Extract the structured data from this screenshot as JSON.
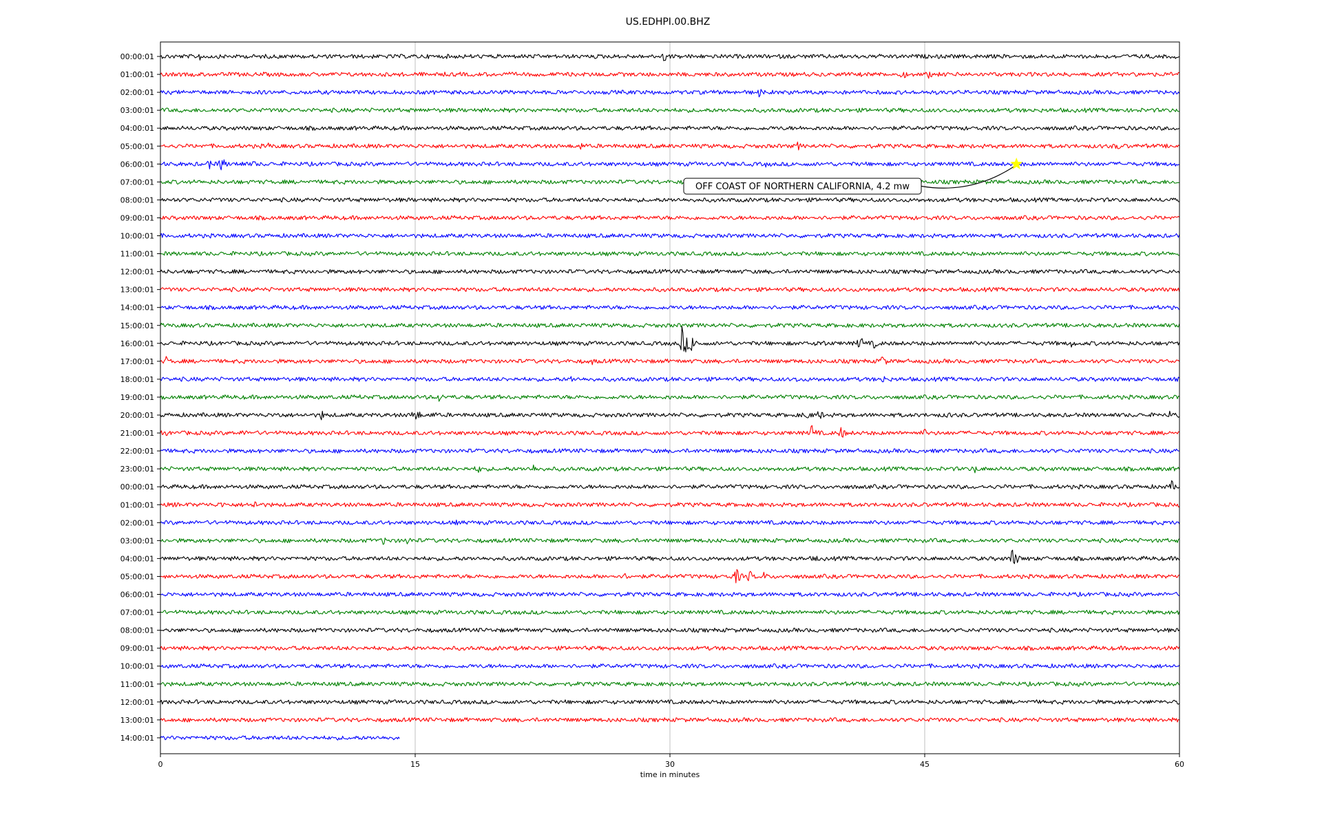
{
  "chart_data": {
    "type": "line",
    "title": "US.EDHPI.00.BHZ",
    "xlabel": "time in minutes",
    "ylabel": "",
    "xlim": [
      0,
      60
    ],
    "xticks": [
      0,
      15,
      30,
      45,
      60
    ],
    "grid": "vertical",
    "series_colors": [
      "#000000",
      "#ff0000",
      "#0000ff",
      "#008000"
    ],
    "rows": [
      {
        "label": "00:00:01",
        "color": "#000000",
        "end": 60,
        "events": [
          [
            2.2,
            0.6
          ],
          [
            2.4,
            0.5
          ],
          [
            29.6,
            0.7
          ]
        ]
      },
      {
        "label": "01:00:01",
        "color": "#ff0000",
        "end": 60,
        "events": [
          [
            43.6,
            0.7
          ],
          [
            45.2,
            0.5
          ]
        ]
      },
      {
        "label": "02:00:01",
        "color": "#0000ff",
        "end": 60,
        "events": [
          [
            35.2,
            0.6
          ]
        ]
      },
      {
        "label": "03:00:01",
        "color": "#008000",
        "end": 60,
        "events": []
      },
      {
        "label": "04:00:01",
        "color": "#000000",
        "end": 60,
        "events": []
      },
      {
        "label": "05:00:01",
        "color": "#ff0000",
        "end": 60,
        "events": [
          [
            6.3,
            0.5
          ],
          [
            24.7,
            0.5
          ],
          [
            37.5,
            0.5
          ],
          [
            56.2,
            0.6
          ]
        ]
      },
      {
        "label": "06:00:01",
        "color": "#0000ff",
        "end": 60,
        "events": [
          [
            2.8,
            0.7
          ],
          [
            3.5,
            1.0
          ],
          [
            4.6,
            0.6
          ],
          [
            5.4,
            0.5
          ],
          [
            35.6,
            0.4
          ]
        ]
      },
      {
        "label": "07:00:01",
        "color": "#008000",
        "end": 60,
        "events": []
      },
      {
        "label": "08:00:01",
        "color": "#000000",
        "end": 60,
        "events": []
      },
      {
        "label": "09:00:01",
        "color": "#ff0000",
        "end": 60,
        "events": []
      },
      {
        "label": "10:00:01",
        "color": "#0000ff",
        "end": 60,
        "events": []
      },
      {
        "label": "11:00:01",
        "color": "#008000",
        "end": 60,
        "events": []
      },
      {
        "label": "12:00:01",
        "color": "#000000",
        "end": 60,
        "events": []
      },
      {
        "label": "13:00:01",
        "color": "#ff0000",
        "end": 60,
        "events": []
      },
      {
        "label": "14:00:01",
        "color": "#0000ff",
        "end": 60,
        "events": []
      },
      {
        "label": "15:00:01",
        "color": "#008000",
        "end": 60,
        "events": []
      },
      {
        "label": "16:00:01",
        "color": "#000000",
        "end": 60,
        "events": [
          [
            30.7,
            1.8
          ],
          [
            31.2,
            1.2
          ],
          [
            38.8,
            0.7
          ],
          [
            41.1,
            1.0
          ],
          [
            42.0,
            0.6
          ],
          [
            53.6,
            0.5
          ]
        ]
      },
      {
        "label": "17:00:01",
        "color": "#ff0000",
        "end": 60,
        "events": [
          [
            0.3,
            0.6
          ],
          [
            25.4,
            0.4
          ],
          [
            42.4,
            0.9
          ]
        ]
      },
      {
        "label": "18:00:01",
        "color": "#0000ff",
        "end": 60,
        "events": [
          [
            18.6,
            0.3
          ],
          [
            24.1,
            0.5
          ],
          [
            37.4,
            0.4
          ],
          [
            42.5,
            0.5
          ]
        ]
      },
      {
        "label": "19:00:01",
        "color": "#008000",
        "end": 60,
        "events": [
          [
            11.7,
            0.3
          ],
          [
            16.3,
            0.7
          ],
          [
            30.0,
            0.4
          ]
        ]
      },
      {
        "label": "20:00:01",
        "color": "#000000",
        "end": 60,
        "events": [
          [
            6.9,
            0.5
          ],
          [
            9.4,
            0.7
          ],
          [
            14.9,
            1.0
          ],
          [
            16.0,
            0.5
          ],
          [
            37.9,
            0.8
          ],
          [
            38.7,
            0.7
          ],
          [
            46.3,
            0.5
          ],
          [
            59.4,
            0.5
          ]
        ]
      },
      {
        "label": "21:00:01",
        "color": "#ff0000",
        "end": 60,
        "events": [
          [
            0.2,
            0.5
          ],
          [
            4.8,
            0.5
          ],
          [
            38.3,
            1.0
          ],
          [
            40.0,
            0.8
          ],
          [
            44.9,
            0.6
          ]
        ]
      },
      {
        "label": "22:00:01",
        "color": "#0000ff",
        "end": 60,
        "events": [
          [
            53.9,
            0.3
          ]
        ]
      },
      {
        "label": "23:00:01",
        "color": "#008000",
        "end": 60,
        "events": [
          [
            18.6,
            0.6
          ],
          [
            21.9,
            0.6
          ],
          [
            47.8,
            0.7
          ]
        ]
      },
      {
        "label": "00:00:01",
        "color": "#000000",
        "end": 60,
        "events": [
          [
            59.5,
            0.7
          ]
        ]
      },
      {
        "label": "01:00:01",
        "color": "#ff0000",
        "end": 60,
        "events": [
          [
            0.7,
            0.4
          ],
          [
            3.5,
            0.5
          ],
          [
            5.5,
            0.6
          ]
        ]
      },
      {
        "label": "02:00:01",
        "color": "#0000ff",
        "end": 60,
        "events": [
          [
            17.4,
            0.3
          ]
        ]
      },
      {
        "label": "03:00:01",
        "color": "#008000",
        "end": 60,
        "events": [
          [
            5.1,
            0.3
          ],
          [
            13.1,
            0.5
          ],
          [
            14.5,
            0.6
          ]
        ]
      },
      {
        "label": "04:00:01",
        "color": "#000000",
        "end": 60,
        "events": [
          [
            38.5,
            0.5
          ],
          [
            50.1,
            1.3
          ]
        ]
      },
      {
        "label": "05:00:01",
        "color": "#ff0000",
        "end": 60,
        "events": [
          [
            27.3,
            0.5
          ],
          [
            33.8,
            1.1
          ],
          [
            34.6,
            0.8
          ],
          [
            35.5,
            0.5
          ]
        ]
      },
      {
        "label": "06:00:01",
        "color": "#0000ff",
        "end": 60,
        "events": []
      },
      {
        "label": "07:00:01",
        "color": "#008000",
        "end": 60,
        "events": []
      },
      {
        "label": "08:00:01",
        "color": "#000000",
        "end": 60,
        "events": []
      },
      {
        "label": "09:00:01",
        "color": "#ff0000",
        "end": 60,
        "events": []
      },
      {
        "label": "10:00:01",
        "color": "#0000ff",
        "end": 60,
        "events": []
      },
      {
        "label": "11:00:01",
        "color": "#008000",
        "end": 60,
        "events": []
      },
      {
        "label": "12:00:01",
        "color": "#000000",
        "end": 60,
        "events": []
      },
      {
        "label": "13:00:01",
        "color": "#ff0000",
        "end": 60,
        "events": []
      },
      {
        "label": "14:00:01",
        "color": "#0000ff",
        "end": 14.1,
        "events": []
      }
    ],
    "annotation": {
      "text": "OFF COAST OF NORTHERN CALIFORNIA, 4.2 mw",
      "row": 6,
      "minute": 50.4,
      "marker_color": "#ffff00",
      "marker": "star"
    }
  }
}
